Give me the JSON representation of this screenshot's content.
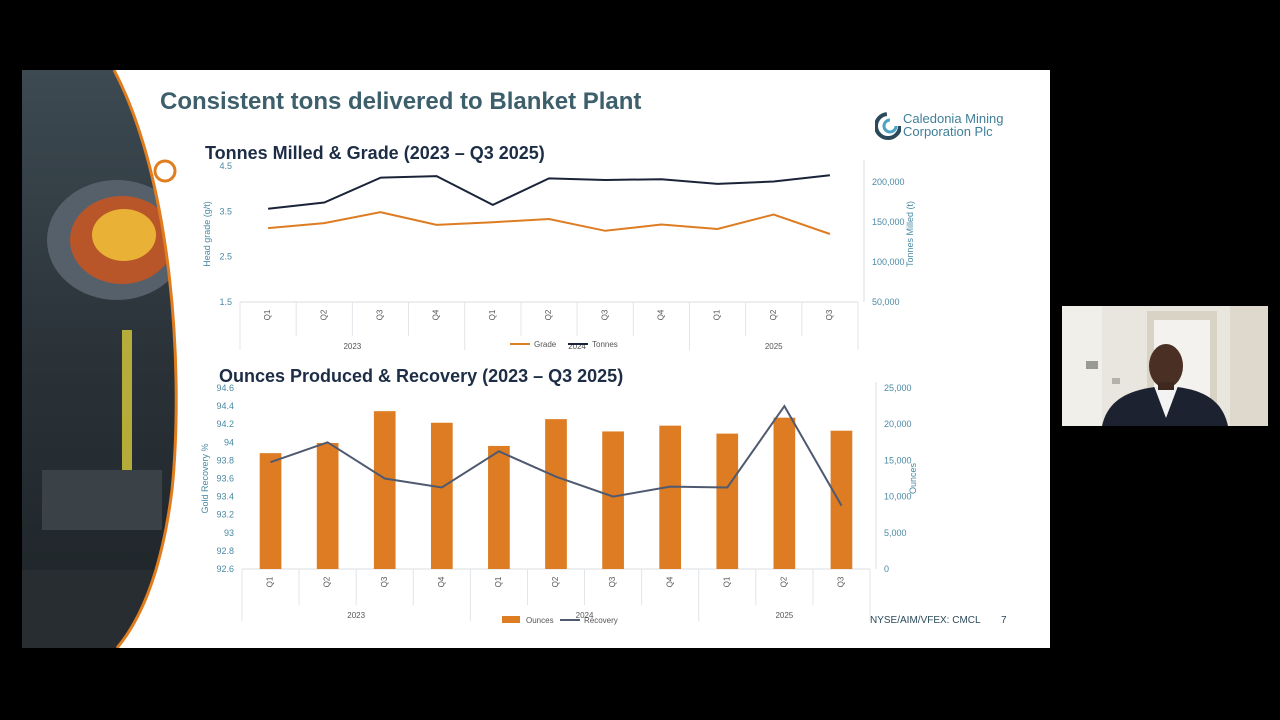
{
  "slide": {
    "title": "Consistent tons delivered to Blanket Plant",
    "logo_line1": "Caledonia Mining",
    "logo_line2": "Corporation Plc",
    "footer": "NYSE/AIM/VFEX: CMCL",
    "page_number": "7"
  },
  "colors": {
    "orange": "#dd7c22",
    "navy": "#1a2338",
    "slate": "#4f5a70",
    "teal_text": "#3d5f6c",
    "axis_label": "#4a8aa3"
  },
  "chart_data": [
    {
      "type": "line",
      "title": "Tonnes Milled & Grade (2023 – Q3 2025)",
      "quarters": [
        "Q1",
        "Q2",
        "Q3",
        "Q4",
        "Q1",
        "Q2",
        "Q3",
        "Q4",
        "Q1",
        "Q2",
        "Q3"
      ],
      "years": [
        "2023",
        "2024",
        "2025"
      ],
      "y_left": {
        "label": "Head grade (g/t)",
        "range": [
          1.5,
          4.5
        ],
        "ticks": [
          "4.5",
          "3.5",
          "2.5",
          "1.5"
        ]
      },
      "y_right": {
        "label": "Tonnes Milled (t)",
        "range": [
          50000,
          225000
        ],
        "ticks": [
          "200,000",
          "150,000",
          "100,000",
          "50,000"
        ]
      },
      "series": [
        {
          "name": "Grade",
          "axis": "left",
          "color": "#dd7c22",
          "values": [
            3.13,
            3.24,
            3.48,
            3.2,
            3.26,
            3.33,
            3.07,
            3.21,
            3.11,
            3.43,
            3.0
          ]
        },
        {
          "name": "Tonnes",
          "axis": "right",
          "color": "#1a2338",
          "values": [
            170000,
            178000,
            210000,
            212000,
            175000,
            209000,
            207000,
            208000,
            202000,
            205000,
            213000
          ]
        }
      ],
      "legend": "bottom-center"
    },
    {
      "type": "bar",
      "title": "Ounces Produced & Recovery (2023 – Q3 2025)",
      "quarters": [
        "Q1",
        "Q2",
        "Q3",
        "Q4",
        "Q1",
        "Q2",
        "Q3",
        "Q4",
        "Q1",
        "Q2",
        "Q3"
      ],
      "years": [
        "2023",
        "2024",
        "2025"
      ],
      "y_left": {
        "label": "Gold Recovery %",
        "range": [
          92.6,
          94.6
        ],
        "ticks": [
          "94.6",
          "94.4",
          "94.2",
          "94",
          "93.8",
          "93.6",
          "93.4",
          "93.2",
          "93",
          "92.8",
          "92.6"
        ]
      },
      "y_right": {
        "label": "Ounces",
        "range": [
          0,
          25000
        ],
        "ticks": [
          "25,000",
          "20,000",
          "15,000",
          "10,000",
          "5,000",
          "0"
        ]
      },
      "series": [
        {
          "name": "Ounces",
          "type": "bar",
          "axis": "right",
          "color": "#dd7c22",
          "values": [
            16000,
            17400,
            21800,
            20200,
            17000,
            20700,
            19000,
            19800,
            18700,
            20900,
            19100
          ]
        },
        {
          "name": "Recovery",
          "type": "line",
          "axis": "left",
          "color": "#4f5a70",
          "values": [
            93.78,
            94.0,
            93.6,
            93.5,
            93.9,
            93.62,
            93.4,
            93.51,
            93.5,
            94.4,
            93.3
          ]
        }
      ],
      "legend": "bottom-center"
    }
  ]
}
